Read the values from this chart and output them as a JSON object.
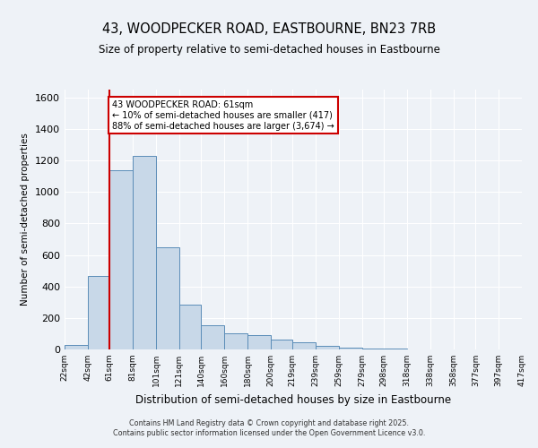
{
  "title_line1": "43, WOODPECKER ROAD, EASTBOURNE, BN23 7RB",
  "title_line2": "Size of property relative to semi-detached houses in Eastbourne",
  "xlabel": "Distribution of semi-detached houses by size in Eastbourne",
  "ylabel": "Number of semi-detached properties",
  "bar_color": "#c8d8e8",
  "bar_edge_color": "#5b8db8",
  "vline_color": "#cc0000",
  "vline_x": 61,
  "annotation_text": "43 WOODPECKER ROAD: 61sqm\n← 10% of semi-detached houses are smaller (417)\n88% of semi-detached houses are larger (3,674) →",
  "annotation_box_color": "#cc0000",
  "background_color": "#eef2f7",
  "grid_color": "#ffffff",
  "bins": [
    22,
    42,
    61,
    81,
    101,
    121,
    140,
    160,
    180,
    200,
    219,
    239,
    259,
    279,
    298,
    318,
    338,
    358,
    377,
    397,
    417
  ],
  "counts": [
    30,
    465,
    1140,
    1230,
    650,
    285,
    155,
    100,
    90,
    65,
    45,
    25,
    12,
    6,
    3,
    2,
    1,
    1,
    0,
    1
  ],
  "ylim": [
    0,
    1650
  ],
  "yticks": [
    0,
    200,
    400,
    600,
    800,
    1000,
    1200,
    1400,
    1600
  ],
  "footer_line1": "Contains HM Land Registry data © Crown copyright and database right 2025.",
  "footer_line2": "Contains public sector information licensed under the Open Government Licence v3.0."
}
